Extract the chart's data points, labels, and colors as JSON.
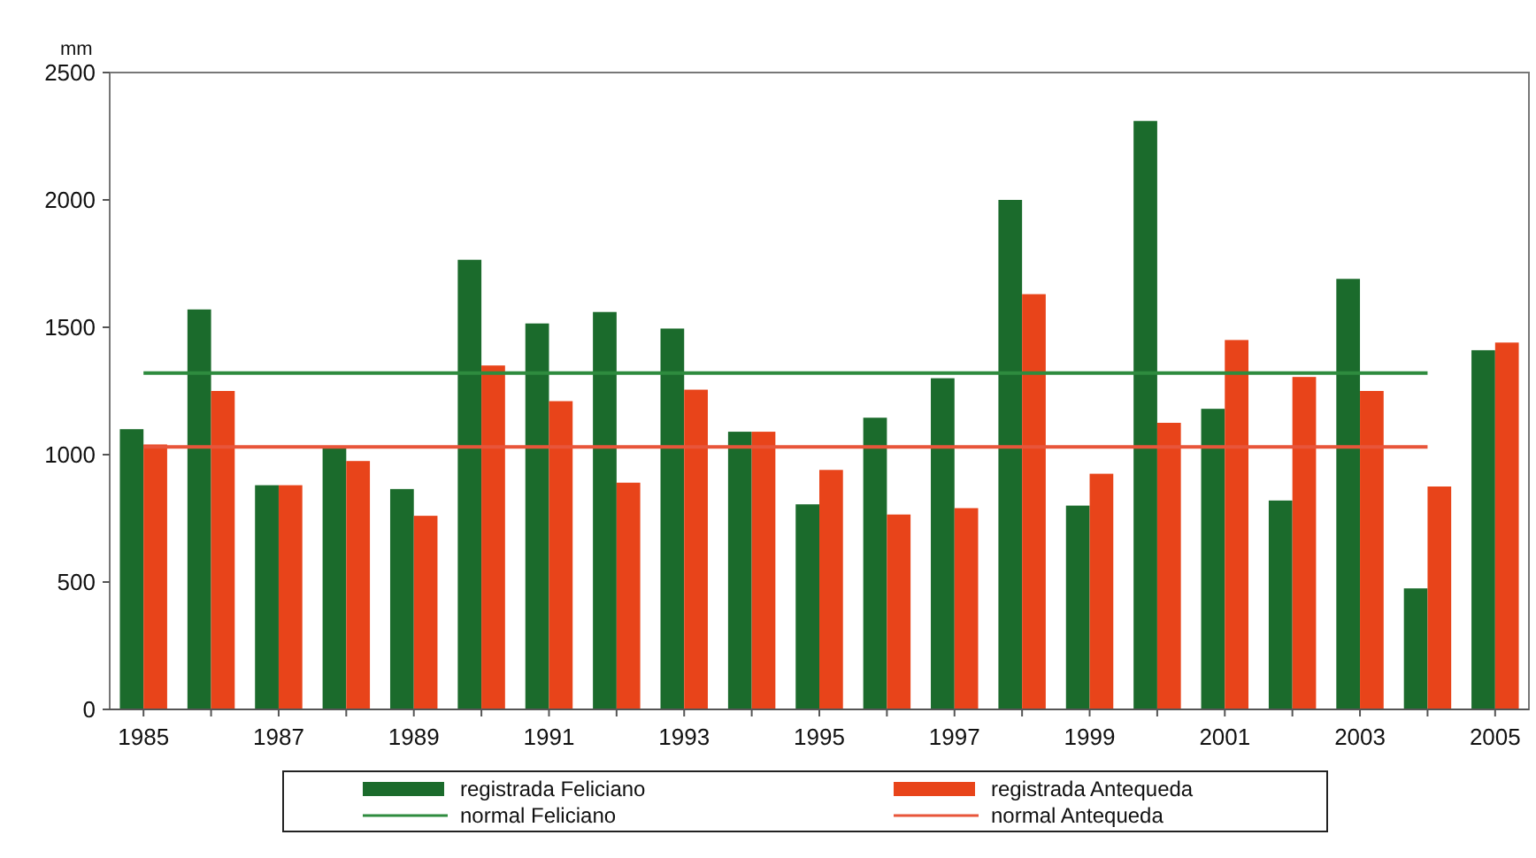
{
  "chart_data": {
    "type": "bar",
    "ylabel": "mm",
    "categories": [
      "1985",
      null,
      "1987",
      null,
      "1989",
      null,
      "1991",
      null,
      "1993",
      null,
      "1995",
      null,
      "1997",
      null,
      "1999",
      null,
      "2001",
      null,
      "2003",
      null,
      "2005"
    ],
    "ylim": [
      0,
      2500
    ],
    "yticks": [
      0,
      500,
      1000,
      1500,
      2000,
      2500
    ],
    "grid": false,
    "legend": "bottom",
    "series": [
      {
        "name": "registrada Feliciano",
        "color": "#1b6b2c",
        "values": [
          1100,
          1570,
          880,
          1030,
          865,
          1765,
          1515,
          1560,
          1495,
          1090,
          805,
          1145,
          1300,
          2000,
          800,
          2310,
          1180,
          820,
          1690,
          475,
          1410
        ]
      },
      {
        "name": "registrada Antequeda",
        "color": "#e8441a",
        "values": [
          1040,
          1250,
          880,
          975,
          760,
          1350,
          1210,
          890,
          1255,
          1090,
          940,
          765,
          790,
          1630,
          925,
          1125,
          1450,
          1305,
          1250,
          875,
          1440
        ]
      },
      {
        "name": "normal Feliciano",
        "type": "line",
        "color": "#2e8b3e",
        "values": [
          1320,
          1320,
          1320,
          1320,
          1320,
          1320,
          1320,
          1320,
          1320,
          1320,
          1320,
          1320,
          1320,
          1320,
          1320,
          1320,
          1320,
          1320,
          1320,
          1320,
          null
        ]
      },
      {
        "name": "normal Antequeda",
        "type": "line",
        "color": "#e8553a",
        "values": [
          1030,
          1030,
          1030,
          1030,
          1030,
          1030,
          1030,
          1030,
          1030,
          1030,
          1030,
          1030,
          1030,
          1030,
          1030,
          1030,
          1030,
          1030,
          1030,
          1030,
          null
        ]
      }
    ]
  }
}
